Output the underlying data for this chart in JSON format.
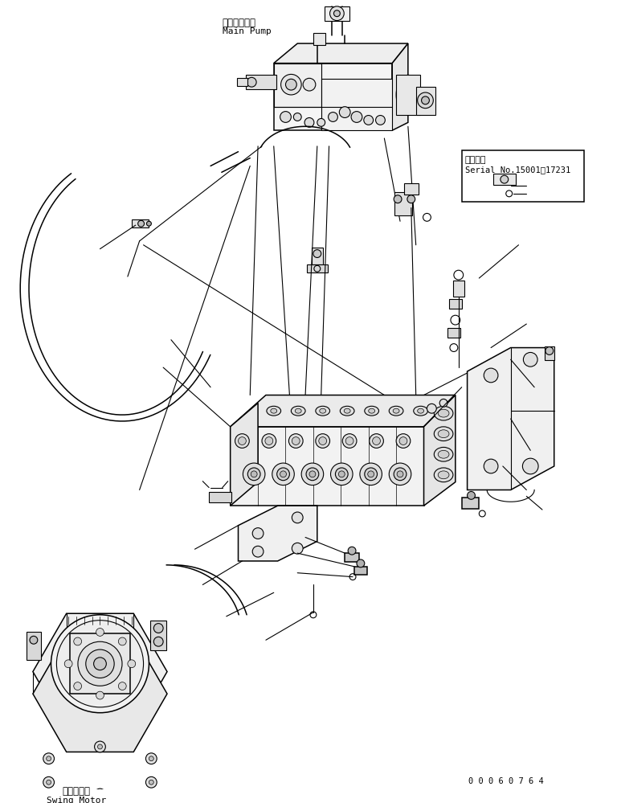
{
  "bg_color": "#ffffff",
  "lc": "#000000",
  "figsize": [
    7.68,
    9.99
  ],
  "dpi": 100,
  "title_ja": "メインポンプ",
  "title_en": "Main Pump",
  "swing_ja": "旋回モータ",
  "swing_en": "Swing Motor",
  "serial_ja": "適用号機",
  "serial_en": "Serial No.15001～17231",
  "part_number": "0 0 0 6 0 7 6 4"
}
